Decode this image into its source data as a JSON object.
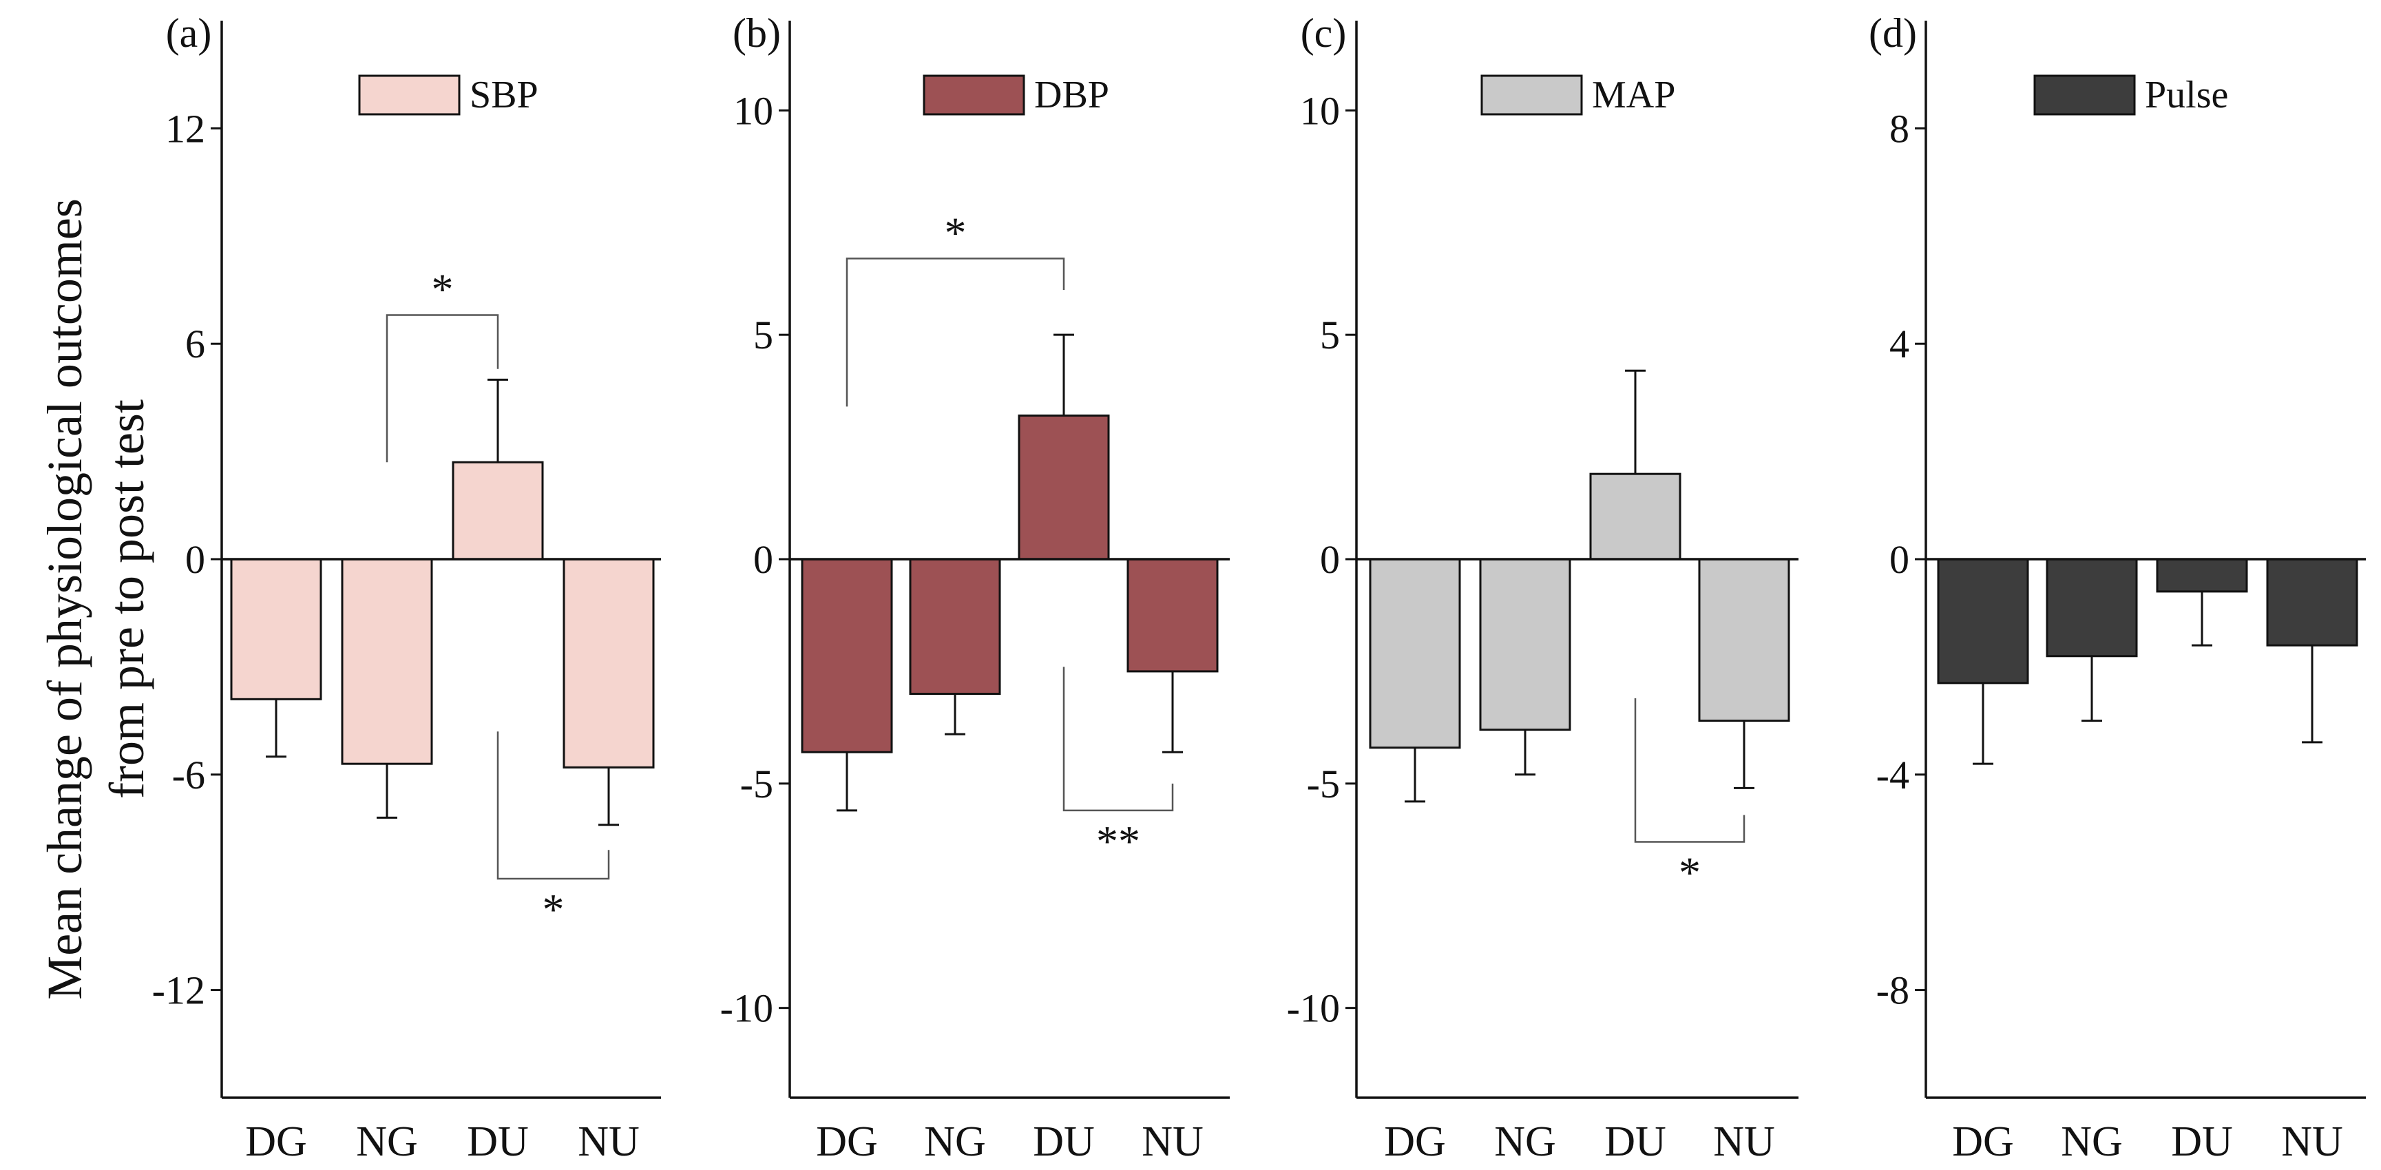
{
  "figure": {
    "ylabel_line1": "Mean change of physiological outcomes",
    "ylabel_line2": "from pre to post test"
  },
  "chart_data": [
    {
      "type": "bar",
      "panel_label": "(a)",
      "legend": "SBP",
      "color": "#f5d5cf",
      "categories": [
        "DG",
        "NG",
        "DU",
        "NU"
      ],
      "values": [
        -3.9,
        -5.7,
        2.7,
        -5.8
      ],
      "errors": [
        1.6,
        1.5,
        2.3,
        1.6
      ],
      "ylim": [
        -15,
        15
      ],
      "yticks": [
        12,
        6,
        0,
        -6,
        -12
      ],
      "ytick_labels": [
        "12",
        "6",
        "0",
        "-6",
        "-12"
      ],
      "significance": [
        {
          "from": 1,
          "to": 2,
          "label": "*",
          "side": "above",
          "start_y": 2.7,
          "end_y": 5.3,
          "bracket_y": 6.8
        },
        {
          "from": 2,
          "to": 3,
          "label": "*",
          "side": "below",
          "start_y": -4.8,
          "end_y": -8.1,
          "bracket_y": -8.9
        }
      ]
    },
    {
      "type": "bar",
      "panel_label": "(b)",
      "legend": "DBP",
      "color": "#9d5154",
      "categories": [
        "DG",
        "NG",
        "DU",
        "NU"
      ],
      "values": [
        -4.3,
        -3.0,
        3.2,
        -2.5
      ],
      "errors": [
        1.3,
        0.9,
        1.8,
        1.8
      ],
      "ylim": [
        -12,
        12
      ],
      "yticks": [
        10,
        5,
        0,
        -5,
        -10
      ],
      "ytick_labels": [
        "10",
        "5",
        "0",
        "-5",
        "-10"
      ],
      "significance": [
        {
          "from": 0,
          "to": 2,
          "label": "*",
          "side": "above",
          "start_y": 3.4,
          "end_y": 6.0,
          "bracket_y": 6.7
        },
        {
          "from": 2,
          "to": 3,
          "label": "**",
          "side": "below",
          "start_y": -2.4,
          "end_y": -5.0,
          "bracket_y": -5.6
        }
      ]
    },
    {
      "type": "bar",
      "panel_label": "(c)",
      "legend": "MAP",
      "color": "#c9c9c9",
      "categories": [
        "DG",
        "NG",
        "DU",
        "NU"
      ],
      "values": [
        -4.2,
        -3.8,
        1.9,
        -3.6
      ],
      "errors": [
        1.2,
        1.0,
        2.3,
        1.5
      ],
      "ylim": [
        -12,
        12
      ],
      "yticks": [
        10,
        5,
        0,
        -5,
        -10
      ],
      "ytick_labels": [
        "10",
        "5",
        "0",
        "-5",
        "-10"
      ],
      "significance": [
        {
          "from": 2,
          "to": 3,
          "label": "*",
          "side": "below",
          "start_y": -3.1,
          "end_y": -5.7,
          "bracket_y": -6.3
        }
      ]
    },
    {
      "type": "bar",
      "panel_label": "(d)",
      "legend": "Pulse",
      "color": "#3d3d3d",
      "categories": [
        "DG",
        "NG",
        "DU",
        "NU"
      ],
      "values": [
        -2.3,
        -1.8,
        -0.6,
        -1.6
      ],
      "errors": [
        1.5,
        1.2,
        1.0,
        1.8
      ],
      "ylim": [
        -10,
        10
      ],
      "yticks": [
        8,
        4,
        0,
        -4,
        -8
      ],
      "ytick_labels": [
        "8",
        "4",
        "0",
        "-4",
        "-8"
      ],
      "significance": []
    }
  ]
}
